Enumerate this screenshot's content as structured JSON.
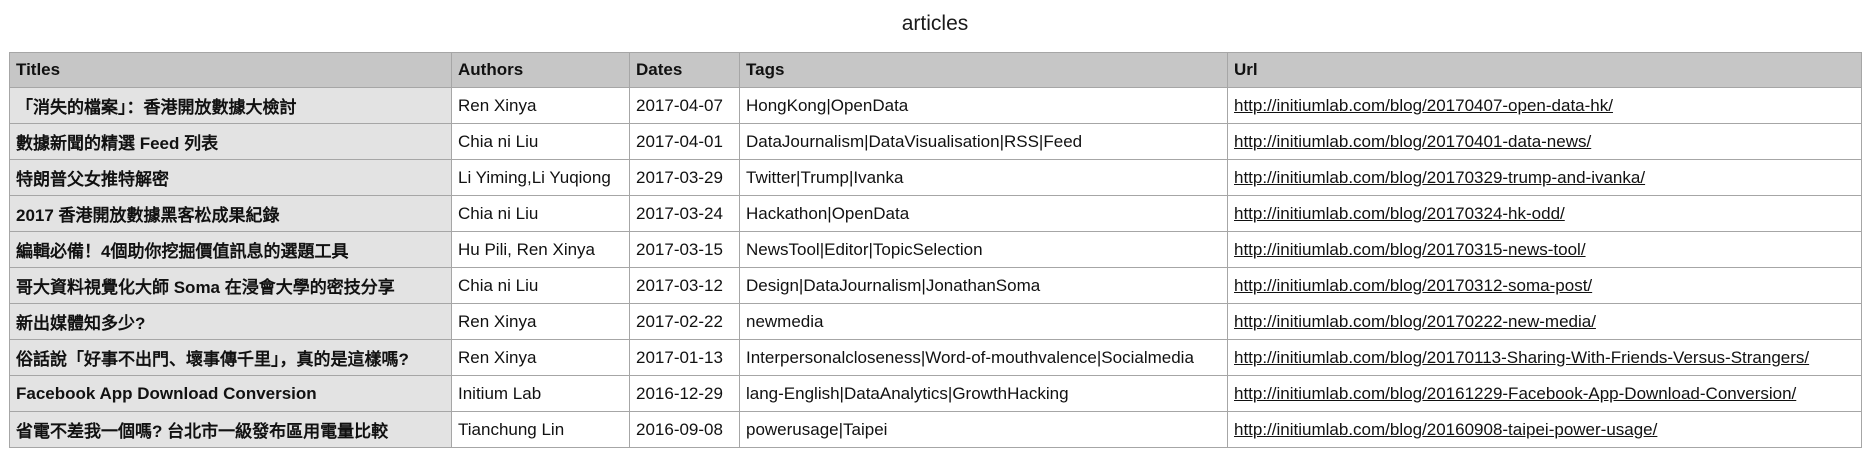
{
  "caption": "articles",
  "headers": {
    "titles": "Titles",
    "authors": "Authors",
    "dates": "Dates",
    "tags": "Tags",
    "url": "Url"
  },
  "rows": [
    {
      "title": "「消失的檔案」：香港開放數據大檢討",
      "author": "Ren Xinya",
      "date": "2017-04-07",
      "tags": "HongKong|OpenData",
      "url": "http://initiumlab.com/blog/20170407-open-data-hk/"
    },
    {
      "title": "數據新聞的精選 Feed 列表",
      "author": "Chia ni Liu",
      "date": "2017-04-01",
      "tags": "DataJournalism|DataVisualisation|RSS|Feed",
      "url": "http://initiumlab.com/blog/20170401-data-news/"
    },
    {
      "title": "特朗普父女推特解密",
      "author": "Li Yiming,Li Yuqiong",
      "date": "2017-03-29",
      "tags": "Twitter|Trump|Ivanka",
      "url": "http://initiumlab.com/blog/20170329-trump-and-ivanka/"
    },
    {
      "title": "2017 香港開放數據黑客松成果紀錄",
      "author": "Chia ni Liu",
      "date": "2017-03-24",
      "tags": "Hackathon|OpenData",
      "url": "http://initiumlab.com/blog/20170324-hk-odd/"
    },
    {
      "title": "編輯必備！4個助你挖掘價值訊息的選題工具",
      "author": "Hu Pili, Ren Xinya",
      "date": "2017-03-15",
      "tags": "NewsTool|Editor|TopicSelection",
      "url": "http://initiumlab.com/blog/20170315-news-tool/"
    },
    {
      "title": "哥大資料視覺化大師 Soma 在浸會大學的密技分享",
      "author": "Chia ni Liu",
      "date": "2017-03-12",
      "tags": "Design|DataJournalism|JonathanSoma",
      "url": "http://initiumlab.com/blog/20170312-soma-post/"
    },
    {
      "title": "新出媒體知多少?",
      "author": "Ren Xinya",
      "date": "2017-02-22",
      "tags": "newmedia",
      "url": "http://initiumlab.com/blog/20170222-new-media/"
    },
    {
      "title": "俗話說「好事不出門、壞事傳千里」，真的是這樣嗎?",
      "author": "Ren Xinya",
      "date": "2017-01-13",
      "tags": "Interpersonalcloseness|Word-of-mouthvalence|Socialmedia",
      "url": "http://initiumlab.com/blog/20170113-Sharing-With-Friends-Versus-Strangers/"
    },
    {
      "title": "Facebook App Download Conversion",
      "author": "Initium Lab",
      "date": "2016-12-29",
      "tags": "lang-English|DataAnalytics|GrowthHacking",
      "url": "http://initiumlab.com/blog/20161229-Facebook-App-Download-Conversion/"
    },
    {
      "title": "省電不差我一個嗎? 台北市一級發布區用電量比較",
      "author": "Tianchung Lin",
      "date": "2016-09-08",
      "tags": "powerusage|Taipei",
      "url": "http://initiumlab.com/blog/20160908-taipei-power-usage/"
    }
  ]
}
